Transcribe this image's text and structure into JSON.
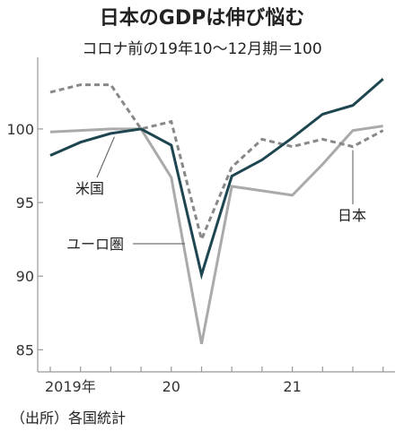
{
  "title": "日本のGDPは伸び悩む",
  "subtitle": "コロナ前の19年10〜12月期＝100",
  "source": "（出所）各国統計",
  "colors": {
    "us": "#1e4650",
    "japan": "#888888",
    "euro": "#aaaaaa",
    "axis": "#999999"
  },
  "chart_data": {
    "type": "line",
    "title": "日本のGDPは伸び悩む",
    "subtitle": "コロナ前の19年10〜12月期＝100",
    "x": [
      "2019Q1",
      "2019Q2",
      "2019Q3",
      "2019Q4",
      "2020Q1",
      "2020Q2",
      "2020Q3",
      "2020Q4",
      "2021Q1",
      "2021Q2",
      "2021Q3",
      "2021Q4"
    ],
    "x_tick_labels": [
      {
        "index": 0,
        "label": "2019年"
      },
      {
        "index": 4,
        "label": "20"
      },
      {
        "index": 8,
        "label": "21"
      }
    ],
    "y_ticks": [
      85,
      90,
      95,
      100
    ],
    "ylim": [
      83.5,
      104.5
    ],
    "grid": false,
    "series": [
      {
        "key": "us",
        "name": "米国",
        "style": "solid",
        "values": [
          98.2,
          99.1,
          99.7,
          100.0,
          98.9,
          90.1,
          96.8,
          97.9,
          99.4,
          101.0,
          101.6,
          103.4
        ]
      },
      {
        "key": "japan",
        "name": "日本",
        "style": "dashed",
        "values": [
          102.5,
          103.0,
          103.0,
          100.0,
          100.5,
          92.5,
          97.4,
          99.3,
          98.8,
          99.3,
          98.8,
          99.9
        ]
      },
      {
        "key": "euro",
        "name": "ユーロ圏",
        "style": "solid",
        "values": [
          99.8,
          99.9,
          100.0,
          100.0,
          96.7,
          85.4,
          96.1,
          95.8,
          95.5,
          97.6,
          99.9,
          100.2
        ]
      }
    ]
  }
}
